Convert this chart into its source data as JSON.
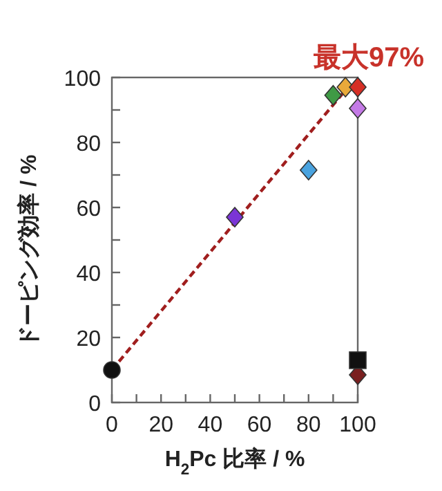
{
  "chart_data": {
    "type": "scatter",
    "xlabel": "H$_{2}$Pc 比率 / %",
    "ylabel": "ドーピング効率 / %",
    "xlim": [
      0,
      100
    ],
    "ylim": [
      0,
      100
    ],
    "xticks": [
      0,
      {
        "value": 10,
        "label": null
      },
      20,
      {
        "value": 30,
        "label": null
      },
      40,
      {
        "value": 50,
        "label": null
      },
      60,
      {
        "value": 70,
        "label": null
      },
      80,
      {
        "value": 90,
        "label": null
      },
      100
    ],
    "yticks": [
      0,
      {
        "value": 10,
        "label": null
      },
      20,
      {
        "value": 30,
        "label": null
      },
      40,
      {
        "value": 50,
        "label": null
      },
      60,
      {
        "value": 70,
        "label": null
      },
      80,
      {
        "value": 90,
        "label": null
      },
      100
    ],
    "grid": false,
    "series": [
      {
        "type": "line",
        "color": "#a01e1e",
        "line_style": "dashed",
        "marker": "none",
        "x": [
          0,
          96
        ],
        "values": [
          10,
          97
        ]
      },
      {
        "marker": "circle",
        "color": "#111111",
        "x": [
          0
        ],
        "values": [
          10
        ]
      },
      {
        "marker": "diamond",
        "colors": [
          "#7b35d6",
          "#4aa3df",
          "#3f9a45",
          "#e9a93a",
          "#d62f25",
          "#c47ae6",
          "#7a1f1f"
        ],
        "x": [
          50,
          80,
          90,
          95,
          100,
          100,
          100
        ],
        "values": [
          57,
          71.5,
          94.5,
          97,
          97,
          90.5,
          8.5
        ]
      },
      {
        "marker": "square",
        "color": "#111111",
        "x": [
          100
        ],
        "values": [
          13
        ]
      }
    ],
    "annotations": [
      {
        "text": "最大97%",
        "x": 100,
        "y": 97
      }
    ]
  }
}
